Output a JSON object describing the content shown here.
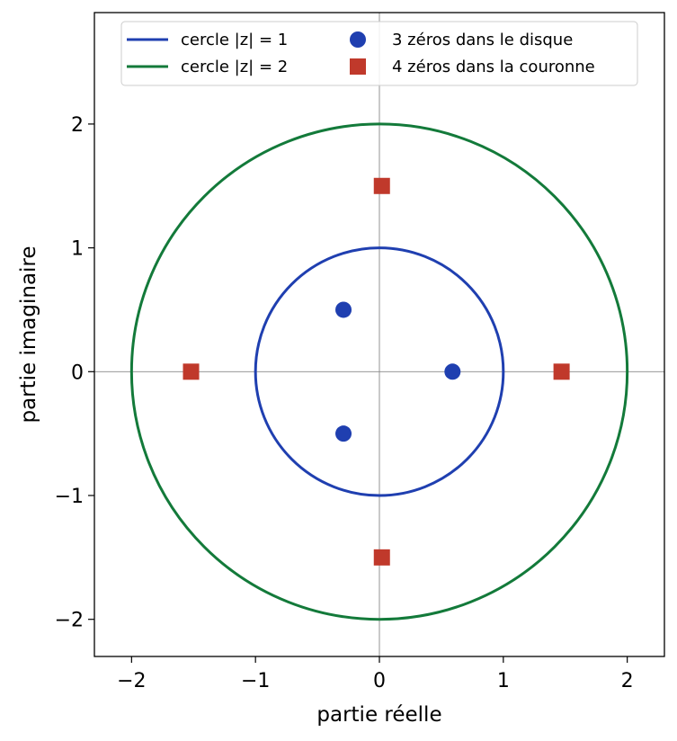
{
  "chart_data": {
    "type": "scatter",
    "xlabel": "partie réelle",
    "ylabel": "partie imaginaire",
    "xlim": [
      -2.3,
      2.3
    ],
    "ylim": [
      -2.3,
      2.9
    ],
    "xticks": [
      -2,
      -1,
      0,
      1,
      2
    ],
    "yticks": [
      -2,
      -1,
      0,
      1,
      2
    ],
    "xtick_labels": [
      "−2",
      "−1",
      "0",
      "1",
      "2"
    ],
    "ytick_labels": [
      "−2",
      "−1",
      "0",
      "1",
      "2"
    ],
    "grid": false,
    "reference_lines": {
      "x": 0,
      "y": 0
    },
    "legend_position": "top-center",
    "circles": [
      {
        "name": "cercle |z| = 1",
        "radius": 1,
        "color": "#1f3fb0"
      },
      {
        "name": "cercle |z| = 2",
        "radius": 2,
        "color": "#137a3a"
      }
    ],
    "series": [
      {
        "name": "3 zéros dans le disque",
        "marker": "circle",
        "color": "#1f3fb0",
        "points": [
          [
            0.59,
            0.0
          ],
          [
            -0.29,
            0.5
          ],
          [
            -0.29,
            -0.5
          ]
        ]
      },
      {
        "name": "4 zéros dans la couronne",
        "marker": "square",
        "color": "#c0392b",
        "points": [
          [
            1.47,
            0.0
          ],
          [
            -1.52,
            0.0
          ],
          [
            0.02,
            1.5
          ],
          [
            0.02,
            -1.5
          ]
        ]
      }
    ]
  }
}
